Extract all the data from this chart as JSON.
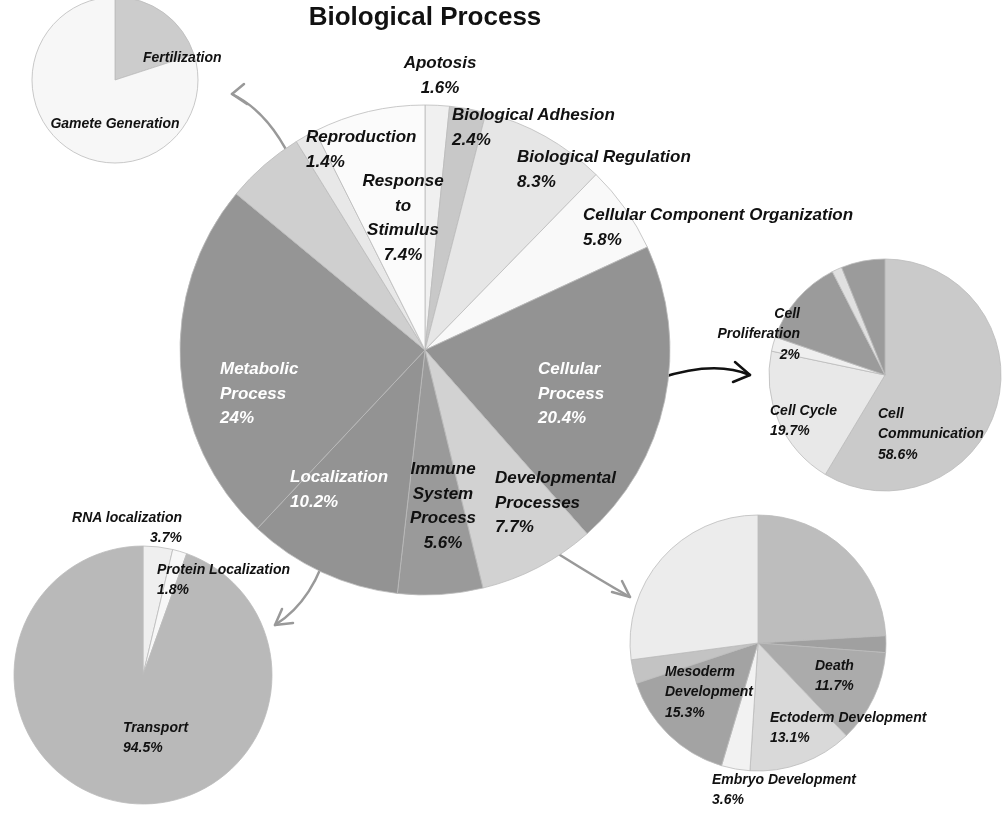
{
  "chart_data": [
    {
      "type": "pie",
      "title": "Biological Process",
      "categories": [
        "Apotosis",
        "Biological Adhesion",
        "Biological Regulation",
        "Cellular Component Organization",
        "Cellular Process",
        "Developmental Processes",
        "Immune System Process",
        "Localization",
        "Metabolic Process",
        null,
        "Reproduction",
        "Response to Stimulus"
      ],
      "values": [
        1.6,
        2.4,
        8.3,
        5.8,
        20.4,
        7.7,
        5.6,
        10.2,
        24,
        5.2,
        1.4,
        7.4
      ],
      "value_labels": [
        "1.6%",
        "2.4%",
        "8.3%",
        "5.8%",
        "20.4%",
        "7.7%",
        "5.6%",
        "10.2%",
        "24%",
        null,
        "1.4%",
        "7.4%"
      ],
      "colors": [
        "#f0f0f0",
        "#c8c8c8",
        "#e6e6e6",
        "#f9f9f9",
        "#939393",
        "#d2d2d2",
        "#9a9a9a",
        "#939393",
        "#959595",
        "#cfcfcf",
        "#e8e8e8",
        "#fbfbfb"
      ]
    },
    {
      "type": "pie",
      "categories": [
        "Fertilization",
        "Gamete Generation"
      ],
      "values": [
        20,
        80
      ],
      "colors": [
        "#cccccc",
        "#f7f7f7"
      ]
    },
    {
      "type": "pie",
      "categories": [
        "Cell Communication",
        "Cell Cycle",
        "Cell Proliferation",
        null,
        null,
        null
      ],
      "values": [
        58.6,
        19.7,
        2,
        12.2,
        1.4,
        6.1
      ],
      "value_labels": [
        "58.6%",
        "19.7%",
        "2%",
        null,
        null,
        null
      ],
      "colors": [
        "#cacaca",
        "#e8e8e8",
        "#efefef",
        "#9b9b9b",
        "#e0e0e0",
        "#9b9b9b"
      ]
    },
    {
      "type": "pie",
      "categories": [
        null,
        null,
        "Death",
        "Ectoderm Development",
        "Embryo Development",
        "Mesoderm Development",
        null,
        null
      ],
      "values": [
        24.1,
        2.1,
        11.7,
        13.1,
        3.6,
        15.3,
        3.0,
        27.1
      ],
      "value_labels": [
        null,
        null,
        "11.7%",
        "13.1%",
        "3.6%",
        "15.3%",
        null,
        null
      ],
      "colors": [
        "#bdbdbd",
        "#a0a0a0",
        "#ababab",
        "#d9d9d9",
        "#f2f2f2",
        "#a3a3a3",
        "#c3c3c3",
        "#ececec"
      ]
    },
    {
      "type": "pie",
      "categories": [
        "RNA localization",
        "Protein Localization",
        "Transport"
      ],
      "values": [
        3.7,
        1.8,
        94.5
      ],
      "value_labels": [
        "3.7%",
        "1.8%",
        "94.5%"
      ],
      "colors": [
        "#efefef",
        "#f7f7f7",
        "#b9b9b9"
      ]
    }
  ]
}
